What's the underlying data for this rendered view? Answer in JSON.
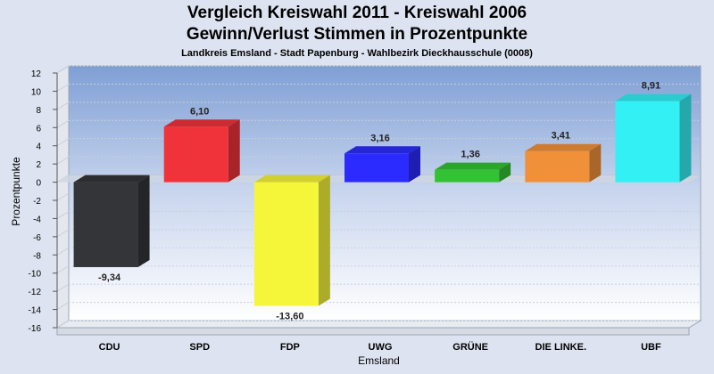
{
  "chart_data": {
    "type": "bar",
    "title": "Vergleich Kreiswahl 2011 - Kreiswahl 2006",
    "subtitle": "Gewinn/Verlust Stimmen in Prozentpunkte",
    "subtitle2": "Landkreis Emsland - Stadt Papenburg - Wahlbezirk Dieckhausschule (0008)",
    "xlabel": "Emsland",
    "ylabel": "Prozentpunkte",
    "ylim": [
      -16,
      12
    ],
    "yticks": [
      12,
      10,
      8,
      6,
      4,
      2,
      0,
      -2,
      -4,
      -6,
      -8,
      -10,
      -12,
      -14,
      -16
    ],
    "categories": [
      "CDU",
      "SPD",
      "FDP",
      "UWG",
      "GRÜNE",
      "DIE LINKE.",
      "UBF"
    ],
    "values": [
      -9.34,
      6.1,
      -13.6,
      3.16,
      1.36,
      3.41,
      8.91
    ],
    "value_labels": [
      "-9,34",
      "6,10",
      "-13,60",
      "3,16",
      "1,36",
      "3,41",
      "8,91"
    ],
    "colors": [
      "#333538",
      "#f0333a",
      "#f5f53a",
      "#2b2bff",
      "#33c233",
      "#f0913a",
      "#33f0f5"
    ],
    "grid": true,
    "legend": "none"
  }
}
